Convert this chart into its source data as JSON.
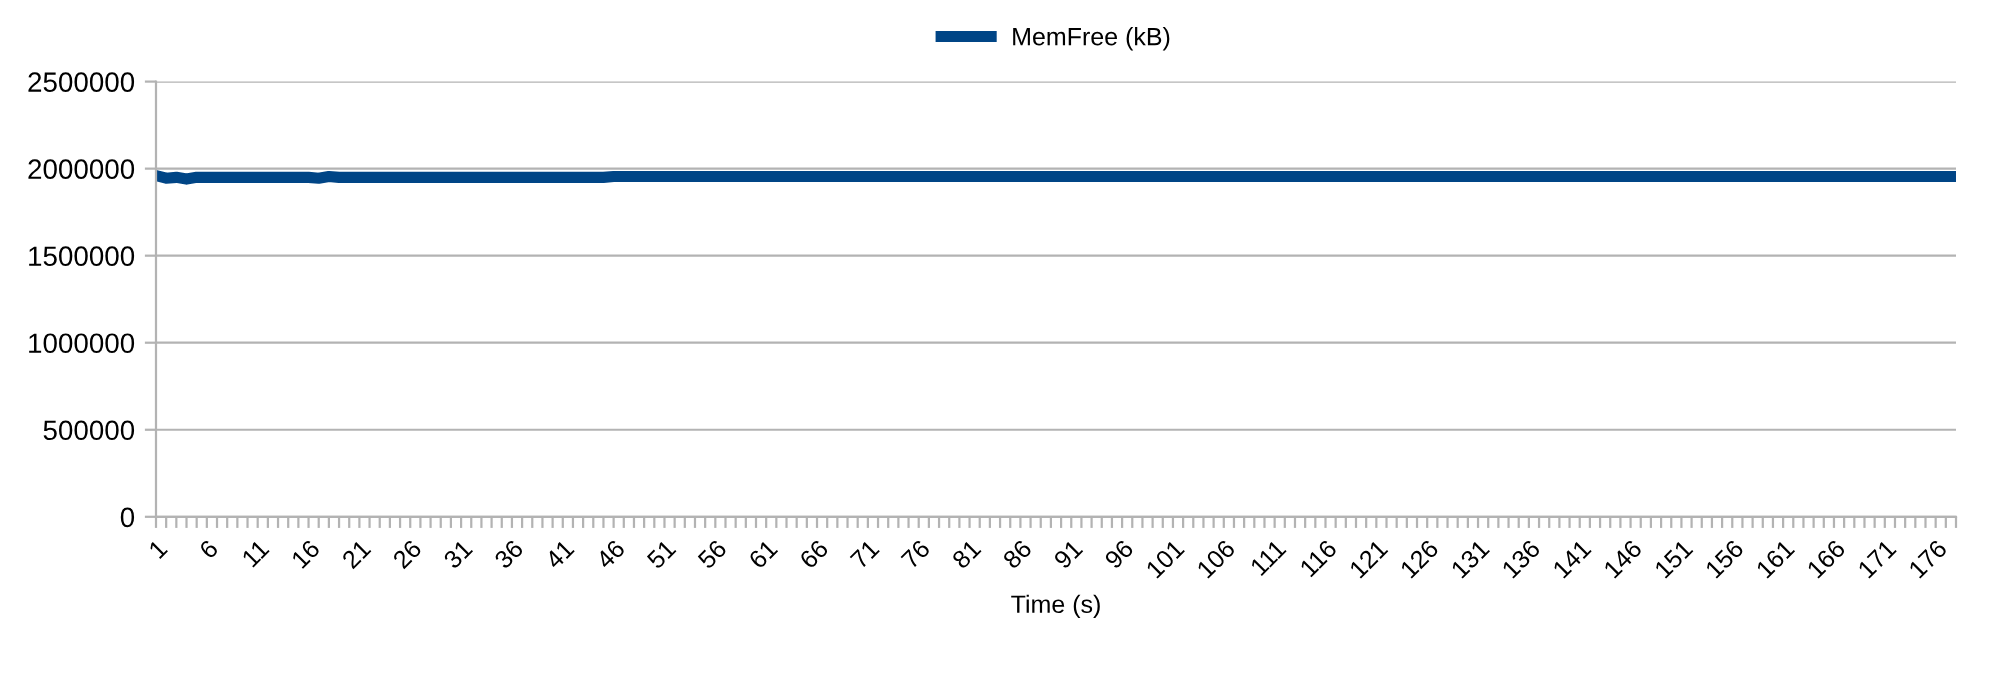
{
  "chart_data": {
    "type": "line",
    "xlabel": "Time (s)",
    "categories": [
      "1",
      null,
      null,
      null,
      null,
      "6",
      null,
      null,
      null,
      null,
      "11",
      null,
      null,
      null,
      null,
      "16",
      null,
      null,
      null,
      null,
      "21",
      null,
      null,
      null,
      null,
      "26",
      null,
      null,
      null,
      null,
      "31",
      null,
      null,
      null,
      null,
      "36",
      null,
      null,
      null,
      null,
      "41",
      null,
      null,
      null,
      null,
      "46",
      null,
      null,
      null,
      null,
      "51",
      null,
      null,
      null,
      null,
      "56",
      null,
      null,
      null,
      null,
      "61",
      null,
      null,
      null,
      null,
      "66",
      null,
      null,
      null,
      null,
      "71",
      null,
      null,
      null,
      null,
      "76",
      null,
      null,
      null,
      null,
      "81",
      null,
      null,
      null,
      null,
      "86",
      null,
      null,
      null,
      null,
      "91",
      null,
      null,
      null,
      null,
      "96",
      null,
      null,
      null,
      null,
      "101",
      null,
      null,
      null,
      null,
      "106",
      null,
      null,
      null,
      null,
      "111",
      null,
      null,
      null,
      null,
      "116",
      null,
      null,
      null,
      null,
      "121",
      null,
      null,
      null,
      null,
      "126",
      null,
      null,
      null,
      null,
      "131",
      null,
      null,
      null,
      null,
      "136",
      null,
      null,
      null,
      null,
      "141",
      null,
      null,
      null,
      null,
      "146",
      null,
      null,
      null,
      null,
      "151",
      null,
      null,
      null,
      null,
      "156",
      null,
      null,
      null,
      null,
      "161",
      null,
      null,
      null,
      null,
      "166",
      null,
      null,
      null,
      null,
      "171",
      null,
      null,
      null,
      null,
      "176",
      null,
      null
    ],
    "series": [
      {
        "name": "MemFree (kB)",
        "color": "#004586",
        "values": [
          1960000,
          1945000,
          1950000,
          1940000,
          1950000,
          1950000,
          1950000,
          1950000,
          1950000,
          1950000,
          1950000,
          1950000,
          1950000,
          1950000,
          1950000,
          1950000,
          1945000,
          1955000,
          1950000,
          1950000,
          1950000,
          1950000,
          1950000,
          1950000,
          1950000,
          1950000,
          1950000,
          1950000,
          1950000,
          1950000,
          1950000,
          1950000,
          1950000,
          1950000,
          1950000,
          1950000,
          1950000,
          1950000,
          1950000,
          1950000,
          1950000,
          1950000,
          1950000,
          1950000,
          1950000,
          1955000,
          1955000,
          1955000,
          1955000,
          1955000,
          1955000,
          1955000,
          1955000,
          1955000,
          1955000,
          1955000,
          1955000,
          1955000,
          1955000,
          1955000,
          1955000,
          1955000,
          1955000,
          1955000,
          1955000,
          1955000,
          1955000,
          1955000,
          1955000,
          1955000,
          1955000,
          1955000,
          1955000,
          1955000,
          1955000,
          1955000,
          1955000,
          1955000,
          1955000,
          1955000,
          1955000,
          1955000,
          1955000,
          1955000,
          1955000,
          1955000,
          1955000,
          1955000,
          1955000,
          1955000,
          1955000,
          1955000,
          1955000,
          1955000,
          1955000,
          1955000,
          1955000,
          1955000,
          1955000,
          1955000,
          1955000,
          1955000,
          1955000,
          1955000,
          1955000,
          1955000,
          1955000,
          1955000,
          1955000,
          1955000,
          1955000,
          1955000,
          1955000,
          1955000,
          1955000,
          1955000,
          1955000,
          1955000,
          1955000,
          1955000,
          1955000,
          1955000,
          1955000,
          1955000,
          1955000,
          1955000,
          1955000,
          1955000,
          1955000,
          1955000,
          1955000,
          1955000,
          1955000,
          1955000,
          1955000,
          1955000,
          1955000,
          1955000,
          1955000,
          1955000,
          1955000,
          1955000,
          1955000,
          1955000,
          1955000,
          1955000,
          1955000,
          1955000,
          1955000,
          1955000,
          1955000,
          1955000,
          1955000,
          1955000,
          1955000,
          1955000,
          1955000,
          1955000,
          1955000,
          1955000,
          1955000,
          1955000,
          1955000,
          1955000,
          1955000,
          1955000,
          1955000,
          1955000,
          1955000,
          1955000,
          1955000,
          1955000,
          1955000,
          1955000,
          1955000,
          1955000,
          1955000,
          1955000
        ]
      }
    ],
    "ylim": [
      0,
      2500000
    ],
    "yticks": [
      0,
      500000,
      1000000,
      1500000,
      2000000,
      2500000
    ],
    "grid": "y",
    "legend": "top",
    "marker": "none",
    "line_style": "solid"
  }
}
